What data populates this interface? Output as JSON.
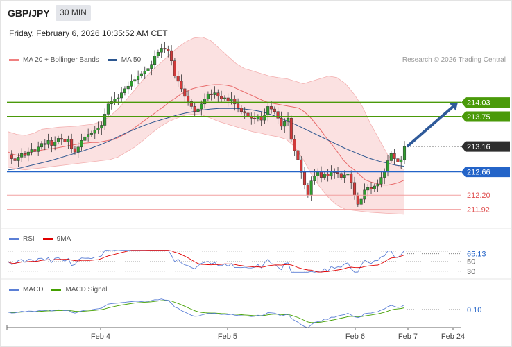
{
  "header": {
    "symbol": "GBP/JPY",
    "timeframe": "30 MIN",
    "datetime": "Friday, February 6, 2026 10:35:52 AM CET"
  },
  "main_legend": [
    {
      "label": "MA 20 + Bollinger Bands",
      "color": "#f08080"
    },
    {
      "label": "MA 50",
      "color": "#2c5690"
    }
  ],
  "copyright": "Research © 2026 Trading Central",
  "rsi_legend": [
    {
      "label": "RSI",
      "color": "#5b7fd6"
    },
    {
      "label": "9MA",
      "color": "#e00000"
    }
  ],
  "macd_legend": [
    {
      "label": "MACD",
      "color": "#5b7fd6"
    },
    {
      "label": "MACD Signal",
      "color": "#44a000"
    }
  ],
  "x_axis_labels": [
    "Feb 4",
    "Feb 5",
    "Feb 6",
    "Feb 7",
    "Feb 24"
  ],
  "chart_data": [
    {
      "type": "candlestick",
      "price_range": [
        211.6,
        214.75
      ],
      "levels": [
        {
          "value": 214.03,
          "label": "214.03",
          "kind": "resistance",
          "color": "#4a9a0a"
        },
        {
          "value": 213.75,
          "label": "213.75",
          "kind": "resistance",
          "color": "#4a9a0a"
        },
        {
          "value": 213.16,
          "label": "213.16",
          "kind": "last-price",
          "color": "#2e2e2e"
        },
        {
          "value": 212.66,
          "label": "212.66",
          "kind": "pivot",
          "color": "#2464c8"
        },
        {
          "value": 212.2,
          "label": "212.20",
          "kind": "support",
          "color": "#e05050"
        },
        {
          "value": 211.92,
          "label": "211.92",
          "kind": "support",
          "color": "#e05050"
        }
      ],
      "close_path": [
        213.0,
        212.92,
        212.88,
        212.95,
        213.02,
        212.98,
        213.05,
        213.1,
        213.06,
        213.15,
        213.22,
        213.2,
        213.28,
        213.18,
        213.25,
        213.32,
        213.3,
        213.25,
        213.3,
        213.12,
        213.05,
        213.15,
        213.28,
        213.35,
        213.4,
        213.42,
        213.48,
        213.52,
        213.58,
        213.8,
        214.0,
        214.05,
        214.1,
        214.12,
        214.22,
        214.3,
        214.35,
        214.45,
        214.48,
        214.55,
        214.6,
        214.65,
        214.7,
        214.78,
        214.95,
        215.02,
        215.1,
        215.08,
        215.05,
        214.85,
        214.55,
        214.45,
        214.3,
        214.15,
        214.05,
        213.95,
        213.85,
        213.9,
        214.0,
        214.1,
        214.2,
        214.18,
        214.22,
        214.15,
        214.1,
        214.12,
        214.06,
        214.1,
        214.0,
        213.92,
        213.85,
        213.82,
        213.76,
        213.72,
        213.7,
        213.75,
        213.68,
        213.78,
        213.95,
        213.9,
        213.85,
        213.72,
        213.56,
        213.65,
        213.72,
        213.3,
        213.08,
        212.9,
        212.65,
        212.4,
        212.2,
        212.48,
        212.58,
        212.66,
        212.55,
        212.62,
        212.58,
        212.66,
        212.65,
        212.63,
        212.55,
        212.6,
        212.62,
        212.45,
        212.2,
        212.02,
        212.12,
        212.3,
        212.35,
        212.32,
        212.38,
        212.42,
        212.55,
        212.66,
        212.88,
        213.02,
        212.92,
        212.85,
        212.9,
        213.16
      ],
      "ma20": [
        213.05,
        213.0,
        212.98,
        213.0,
        213.05,
        213.07,
        213.09,
        213.11,
        213.12,
        213.14,
        213.16,
        213.18,
        213.2,
        213.22,
        213.23,
        213.24,
        213.24,
        213.26,
        213.28,
        213.3,
        213.35,
        213.41,
        213.48,
        213.56,
        213.64,
        213.72,
        213.8,
        213.88,
        213.96,
        214.05,
        214.12,
        214.2,
        214.25,
        214.3,
        214.33,
        214.35,
        214.37,
        214.38,
        214.38,
        214.37,
        214.35,
        214.3,
        214.25,
        214.2,
        214.15,
        214.1,
        214.05,
        214.02,
        214.0,
        213.98,
        213.96,
        213.94,
        213.92,
        213.85,
        213.75,
        213.62,
        213.48,
        213.33,
        213.2,
        213.05,
        212.9,
        212.78,
        212.7,
        212.6,
        212.5,
        212.46,
        212.43,
        212.4,
        212.4,
        212.42,
        212.45,
        212.5
      ],
      "ma50": [
        212.7,
        212.72,
        212.76,
        212.8,
        212.84,
        212.88,
        212.93,
        212.98,
        213.03,
        213.08,
        213.14,
        213.2,
        213.27,
        213.35,
        213.43,
        213.5,
        213.57,
        213.63,
        213.68,
        213.73,
        213.78,
        213.82,
        213.85,
        213.88,
        213.9,
        213.91,
        213.91,
        213.91,
        213.9,
        213.88,
        213.85,
        213.8,
        213.74,
        213.67,
        213.6,
        213.52,
        213.44,
        213.36,
        213.28,
        213.2,
        213.12,
        213.05,
        212.98,
        212.92,
        212.87,
        212.83,
        212.79,
        212.77
      ],
      "bollinger_upper": [
        213.45,
        213.4,
        213.38,
        213.42,
        213.5,
        213.52,
        213.54,
        213.55,
        213.56,
        213.58,
        213.6,
        213.65,
        213.75,
        213.9,
        214.08,
        214.28,
        214.48,
        214.65,
        214.8,
        214.95,
        215.1,
        215.22,
        215.3,
        215.32,
        215.25,
        215.1,
        214.95,
        214.8,
        214.7,
        214.65,
        214.6,
        214.55,
        214.52,
        214.5,
        214.45,
        214.4,
        214.45,
        214.5,
        214.55,
        214.52,
        214.4,
        214.2,
        213.95,
        213.6,
        213.3,
        213.0,
        212.8,
        212.7
      ],
      "bollinger_lower": [
        212.75,
        212.72,
        212.7,
        212.72,
        212.74,
        212.76,
        212.78,
        212.8,
        212.82,
        212.84,
        212.86,
        212.88,
        212.9,
        212.95,
        213.05,
        213.15,
        213.28,
        213.42,
        213.55,
        213.65,
        213.72,
        213.78,
        213.8,
        213.78,
        213.72,
        213.65,
        213.6,
        213.55,
        213.5,
        213.45,
        213.42,
        213.38,
        213.35,
        213.3,
        213.15,
        212.9,
        212.6,
        212.35,
        212.15,
        212.0,
        211.92,
        211.9,
        211.88,
        211.86,
        211.85,
        211.84,
        211.83,
        211.82
      ],
      "forecast_arrow": {
        "from": 213.16,
        "to": 214.03
      },
      "rsi": {
        "value_label": "65.13",
        "ticks": [
          "50",
          "30"
        ]
      },
      "macd": {
        "value_label": "0.10"
      }
    }
  ]
}
